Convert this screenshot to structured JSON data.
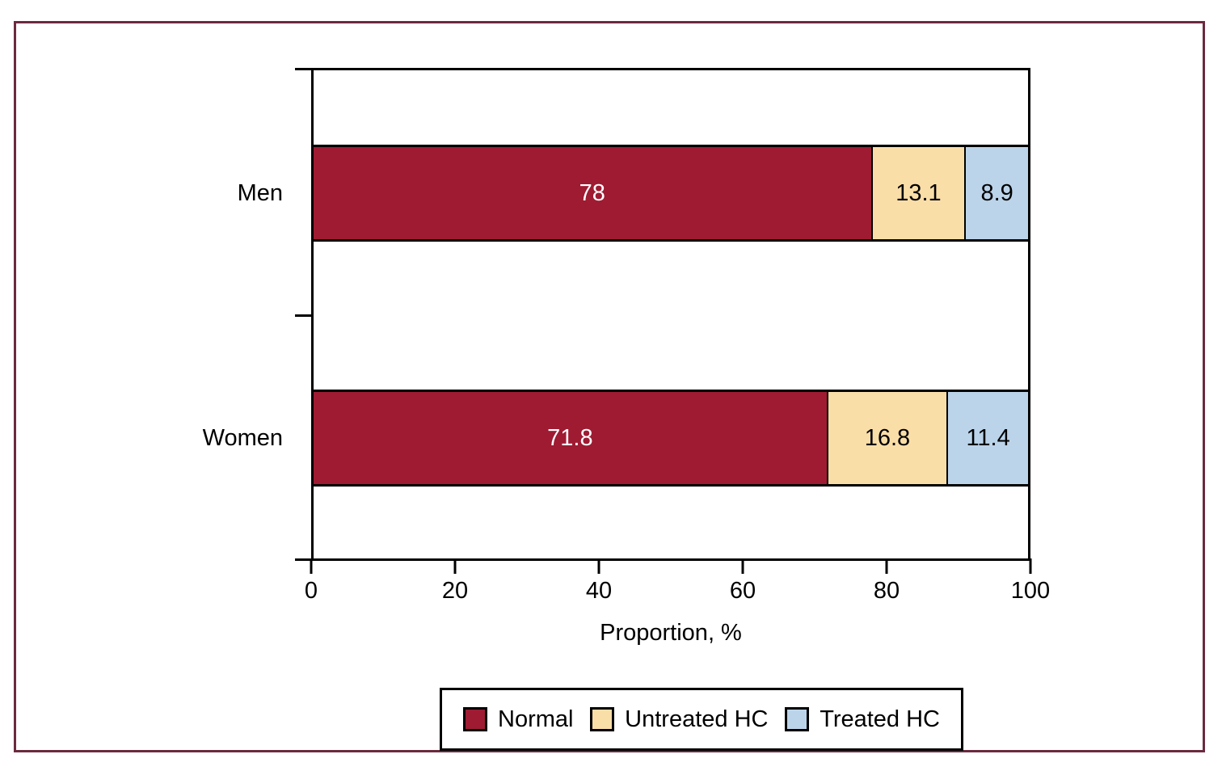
{
  "figure": {
    "outer_border_color": "#6C2A3F",
    "background_color": "#FFFFFF",
    "axis_color": "#000000"
  },
  "chart_data": {
    "type": "bar",
    "orientation": "horizontal",
    "stacked": true,
    "title": "",
    "xlabel": "Proportion, %",
    "ylabel": "",
    "xlim": [
      0,
      100
    ],
    "x_ticks": [
      "0",
      "20",
      "40",
      "60",
      "80",
      "100"
    ],
    "grid": false,
    "categories": [
      "Men",
      "Women"
    ],
    "series": [
      {
        "name": "Normal",
        "color": "#9E1B32",
        "label_color": "#FFFFFF",
        "values": [
          78,
          71.8
        ]
      },
      {
        "name": "Untreated HC",
        "color": "#FADEA8",
        "label_color": "#000000",
        "values": [
          13.1,
          16.8
        ]
      },
      {
        "name": "Treated HC",
        "color": "#BCD4EA",
        "label_color": "#000000",
        "values": [
          8.9,
          11.4
        ]
      }
    ],
    "value_labels": [
      [
        "78",
        "13.1",
        "8.9"
      ],
      [
        "71.8",
        "16.8",
        "11.4"
      ]
    ],
    "legend": {
      "position": "bottom",
      "entries": [
        "Normal",
        "Untreated HC",
        "Treated HC"
      ]
    }
  }
}
